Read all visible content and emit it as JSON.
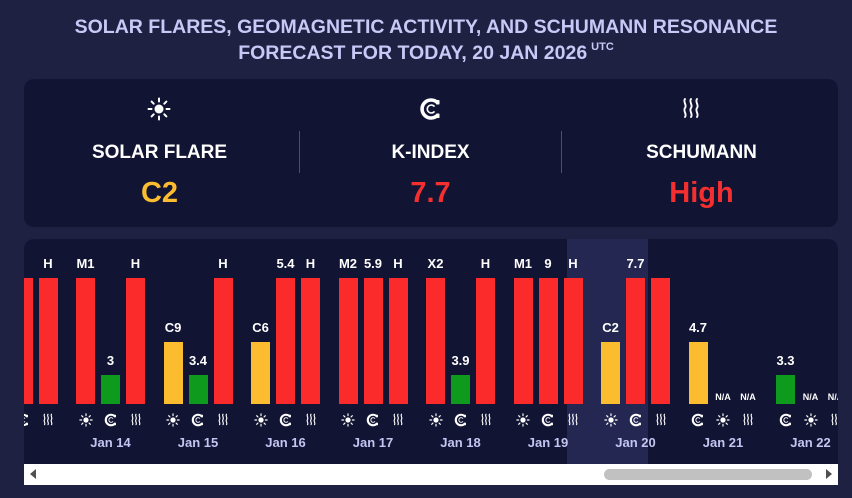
{
  "header": {
    "title_line1": "SOLAR FLARES, GEOMAGNETIC ACTIVITY, AND SCHUMANN RESONANCE",
    "title_line2": "FORECAST FOR TODAY, 20 JAN 2026",
    "timezone": "UTC"
  },
  "summary": [
    {
      "id": "solar-flare",
      "icon": "sun-icon",
      "label": "SOLAR FLARE",
      "value": "C2",
      "color": "#fbbd2f"
    },
    {
      "id": "k-index",
      "icon": "magnet-icon",
      "label": "K-INDEX",
      "value": "7.7",
      "color": "#f42f2f"
    },
    {
      "id": "schumann",
      "icon": "waves-icon",
      "label": "SCHUMANN",
      "value": "High",
      "color": "#f42f2f"
    }
  ],
  "colors": {
    "red": "#fb2b2b",
    "yellow": "#fbbd2f",
    "green": "#0e9a1d"
  },
  "days": [
    {
      "date": "",
      "bars": [
        {
          "type": "solar",
          "label": "",
          "level": null,
          "color": "red"
        },
        {
          "type": "kp",
          "label": "",
          "level": null,
          "color": "red"
        },
        {
          "type": "schumann",
          "label": "H",
          "level": 1,
          "color": "red"
        }
      ]
    },
    {
      "date": "Jan 14",
      "bars": [
        {
          "type": "solar",
          "label": "M1",
          "level": 1,
          "color": "red"
        },
        {
          "type": "kp",
          "label": "3",
          "level": 0.23,
          "color": "green"
        },
        {
          "type": "schumann",
          "label": "H",
          "level": 1,
          "color": "red"
        }
      ]
    },
    {
      "date": "Jan 15",
      "bars": [
        {
          "type": "solar",
          "label": "C9",
          "level": 0.49,
          "color": "yellow"
        },
        {
          "type": "kp",
          "label": "3.4",
          "level": 0.23,
          "color": "green"
        },
        {
          "type": "schumann",
          "label": "H",
          "level": 1,
          "color": "red"
        }
      ]
    },
    {
      "date": "Jan 16",
      "bars": [
        {
          "type": "solar",
          "label": "C6",
          "level": 0.49,
          "color": "yellow"
        },
        {
          "type": "kp",
          "label": "5.4",
          "level": 1,
          "color": "red"
        },
        {
          "type": "schumann",
          "label": "H",
          "level": 1,
          "color": "red"
        }
      ]
    },
    {
      "date": "Jan 17",
      "bars": [
        {
          "type": "solar",
          "label": "M2",
          "level": 1,
          "color": "red"
        },
        {
          "type": "kp",
          "label": "5.9",
          "level": 1,
          "color": "red"
        },
        {
          "type": "schumann",
          "label": "H",
          "level": 1,
          "color": "red"
        }
      ]
    },
    {
      "date": "Jan 18",
      "bars": [
        {
          "type": "solar",
          "label": "X2",
          "level": 1,
          "color": "red"
        },
        {
          "type": "kp",
          "label": "3.9",
          "level": 0.23,
          "color": "green"
        },
        {
          "type": "schumann",
          "label": "H",
          "level": 1,
          "color": "red"
        }
      ]
    },
    {
      "date": "Jan 19",
      "bars": [
        {
          "type": "solar",
          "label": "M1",
          "level": 1,
          "color": "red"
        },
        {
          "type": "kp",
          "label": "9",
          "level": 1,
          "color": "red"
        },
        {
          "type": "schumann",
          "label": "H",
          "level": 1,
          "color": "red"
        }
      ]
    },
    {
      "date": "Jan 20",
      "today": true,
      "bars": [
        {
          "type": "solar",
          "label": "C2",
          "level": 0.49,
          "color": "yellow"
        },
        {
          "type": "kp",
          "label": "7.7",
          "level": 1,
          "color": "red"
        },
        {
          "type": "schumann",
          "label": "",
          "level": 1,
          "color": "red"
        }
      ]
    },
    {
      "date": "Jan 21",
      "bars": [
        {
          "type": "kp",
          "label": "4.7",
          "level": 0.49,
          "color": "yellow"
        },
        {
          "type": "solar",
          "label": "N/A",
          "level": 0,
          "color": "none"
        },
        {
          "type": "schumann",
          "label": "N/A",
          "level": 0,
          "color": "none"
        }
      ]
    },
    {
      "date": "Jan 22",
      "bars": [
        {
          "type": "kp",
          "label": "3.3",
          "level": 0.23,
          "color": "green"
        },
        {
          "type": "solar",
          "label": "N/A",
          "level": 0,
          "color": "none"
        },
        {
          "type": "schumann",
          "label": "N/A",
          "level": 0,
          "color": "none"
        }
      ]
    }
  ]
}
